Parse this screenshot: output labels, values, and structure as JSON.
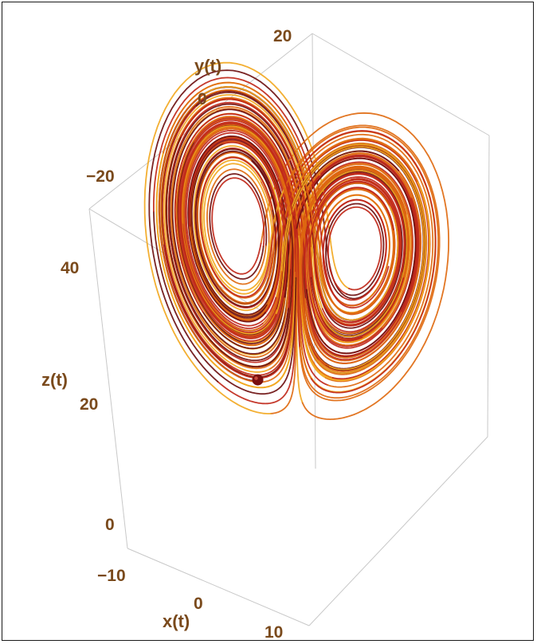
{
  "chart_data": {
    "type": "line",
    "subtype": "3d-parametric-trajectory",
    "title": "",
    "axes": {
      "x": {
        "label": "x(t)",
        "ticks": [
          "−10",
          "0",
          "10"
        ]
      },
      "y": {
        "label": "y(t)",
        "ticks": [
          "−20",
          "0",
          "20"
        ]
      },
      "z": {
        "label": "z(t)",
        "ticks": [
          "0",
          "20",
          "40"
        ]
      }
    },
    "start_marker": {
      "shape": "sphere",
      "color": "#7a1010"
    },
    "colors": {
      "dark": "#6e1010",
      "red": "#c0281a",
      "orange": "#e06a10",
      "yellow": "#f2a821",
      "axis_text": "#7a4a1c"
    },
    "box": "light-gray",
    "grid": false
  }
}
